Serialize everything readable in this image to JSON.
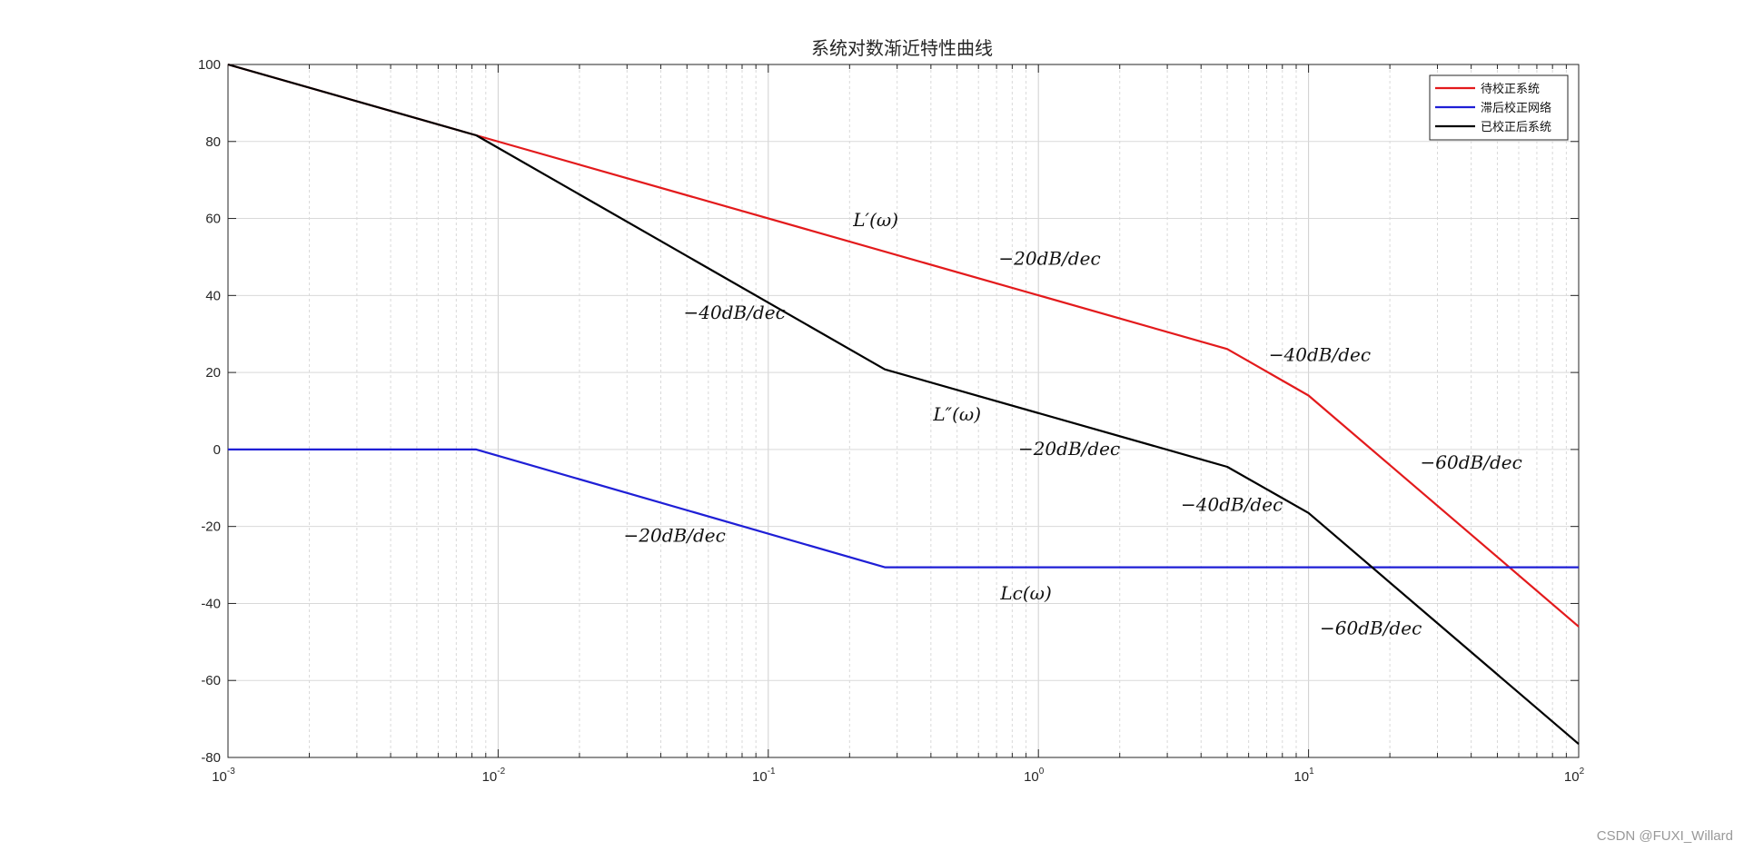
{
  "chart_data": {
    "type": "line",
    "title": "系统对数渐近特性曲线",
    "xscale": "log",
    "xlim": [
      0.001,
      100
    ],
    "ylim": [
      -80,
      100
    ],
    "grid": true,
    "xticks": [
      {
        "value": 0.001,
        "base": "10",
        "exp": "-3"
      },
      {
        "value": 0.01,
        "base": "10",
        "exp": "-2"
      },
      {
        "value": 0.1,
        "base": "10",
        "exp": "-1"
      },
      {
        "value": 1,
        "base": "10",
        "exp": "0"
      },
      {
        "value": 10,
        "base": "10",
        "exp": "1"
      },
      {
        "value": 100,
        "base": "10",
        "exp": "2"
      }
    ],
    "yticks": [
      {
        "value": 100,
        "label": "100"
      },
      {
        "value": 80,
        "label": "80"
      },
      {
        "value": 60,
        "label": "60"
      },
      {
        "value": 40,
        "label": "40"
      },
      {
        "value": 20,
        "label": "20"
      },
      {
        "value": 0,
        "label": "0"
      },
      {
        "value": -20,
        "label": "-20"
      },
      {
        "value": -40,
        "label": "-40"
      },
      {
        "value": -60,
        "label": "-60"
      },
      {
        "value": -80,
        "label": "-80"
      }
    ],
    "series": [
      {
        "name": "待校正系统",
        "color": "#e31a1c",
        "points": [
          [
            0.001,
            100
          ],
          [
            0.0083,
            81.6
          ],
          [
            5,
            26.1
          ],
          [
            10,
            14.0
          ],
          [
            100,
            -46
          ]
        ]
      },
      {
        "name": "滞后校正网络",
        "color": "#1f1fd6",
        "points": [
          [
            0.001,
            0
          ],
          [
            0.0083,
            0
          ],
          [
            0.27,
            -30.6
          ],
          [
            100,
            -30.6
          ]
        ]
      },
      {
        "name": "已校正后系统",
        "color": "#000000",
        "points": [
          [
            0.001,
            100
          ],
          [
            0.0083,
            81.6
          ],
          [
            0.27,
            20.8
          ],
          [
            5,
            -4.5
          ],
          [
            10,
            -16.5
          ],
          [
            100,
            -76.5
          ]
        ]
      }
    ],
    "legend_position": "top-right",
    "annotations": [
      {
        "text": "L′(ω)",
        "x": 0.25,
        "y": 58
      },
      {
        "text": "−20dB/dec",
        "x": 1.1,
        "y": 48
      },
      {
        "text": "−40dB/dec",
        "x": 0.075,
        "y": 34
      },
      {
        "text": "−40dB/dec",
        "x": 11,
        "y": 23
      },
      {
        "text": "L″(ω)",
        "x": 0.5,
        "y": 7.5
      },
      {
        "text": "−20dB/dec",
        "x": 1.3,
        "y": -1.5
      },
      {
        "text": "−60dB/dec",
        "x": 40,
        "y": -5
      },
      {
        "text": "−40dB/dec",
        "x": 5.2,
        "y": -16
      },
      {
        "text": "−20dB/dec",
        "x": 0.045,
        "y": -24
      },
      {
        "text": "Lc(ω)",
        "x": 0.9,
        "y": -39
      },
      {
        "text": "−60dB/dec",
        "x": 17,
        "y": -48
      }
    ]
  },
  "watermark": "CSDN @FUXI_Willard"
}
